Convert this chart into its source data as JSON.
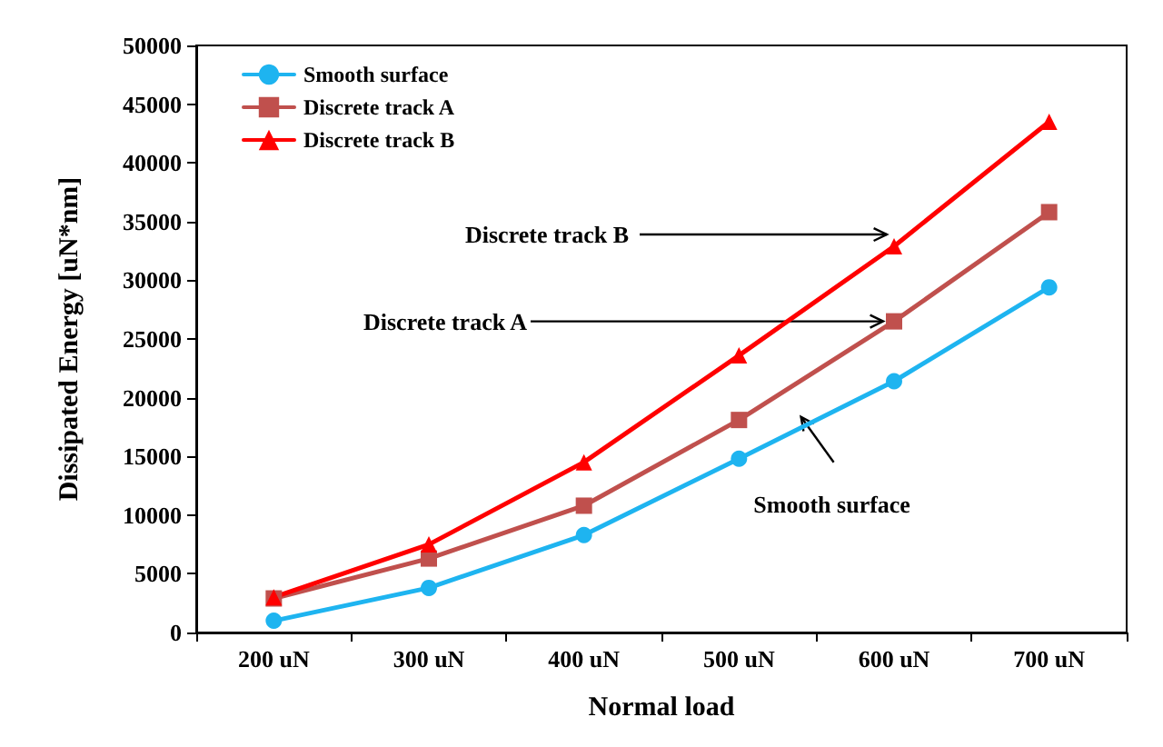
{
  "chart_data": {
    "type": "line",
    "xlabel": "Normal load",
    "ylabel": "Dissipated Energy [uN*nm]",
    "categories": [
      "200 uN",
      "300 uN",
      "400 uN",
      "500 uN",
      "600 uN",
      "700 uN"
    ],
    "series": [
      {
        "name": "Smooth surface",
        "color": "#1eb4f0",
        "marker": "circle",
        "values": [
          1000,
          3800,
          8300,
          14800,
          21400,
          29400
        ]
      },
      {
        "name": "Discrete track A",
        "color": "#c0504d",
        "marker": "square",
        "values": [
          2900,
          6300,
          10800,
          18100,
          26500,
          35800
        ]
      },
      {
        "name": "Discrete track B",
        "color": "#ff0000",
        "marker": "triangle",
        "values": [
          3000,
          7500,
          14500,
          23600,
          32900,
          43500
        ]
      }
    ],
    "ylim": [
      0,
      50000
    ],
    "yticks": [
      0,
      5000,
      10000,
      15000,
      20000,
      25000,
      30000,
      35000,
      40000,
      45000,
      50000
    ],
    "grid": false,
    "legend": "top left",
    "line_style": "solid",
    "annotations": [
      {
        "text": "Discrete track B",
        "x": "600 uN",
        "y": 33900
      },
      {
        "text": "Discrete track A",
        "x": "600 uN",
        "y": 26500
      },
      "Smooth surface"
    ]
  }
}
